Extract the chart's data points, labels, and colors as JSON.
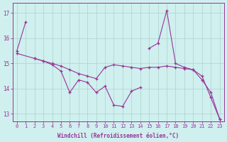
{
  "xlabel": "Windchill (Refroidissement éolien,°C)",
  "background_color": "#cff0ee",
  "grid_color": "#b0d8d0",
  "line_color": "#993399",
  "x_range": [
    -0.5,
    23.5
  ],
  "y_range": [
    12.7,
    17.4
  ],
  "yticks": [
    13,
    14,
    15,
    16,
    17
  ],
  "xticks": [
    0,
    1,
    2,
    3,
    4,
    5,
    6,
    7,
    8,
    9,
    10,
    11,
    12,
    13,
    14,
    15,
    16,
    17,
    18,
    19,
    20,
    21,
    22,
    23
  ],
  "series1_x": [
    0,
    1
  ],
  "series1_y": [
    15.5,
    16.65
  ],
  "series2_x": [
    2,
    3,
    4,
    5,
    6,
    7,
    8,
    9,
    10,
    11,
    12,
    13,
    14
  ],
  "series2_y": [
    15.2,
    15.1,
    14.95,
    14.7,
    13.85,
    14.35,
    14.25,
    13.85,
    14.1,
    13.35,
    13.3,
    13.9,
    14.05
  ],
  "series3_x": [
    15,
    16,
    17,
    18,
    19,
    20,
    21,
    22,
    23
  ],
  "series3_y": [
    15.6,
    15.8,
    17.1,
    15.0,
    14.85,
    14.75,
    14.5,
    13.65,
    12.8
  ],
  "series4_x": [
    0,
    2,
    3,
    4,
    5,
    6,
    7,
    8,
    9,
    10,
    11,
    12,
    13,
    14,
    15,
    16,
    17,
    18,
    19,
    20,
    21,
    22,
    23
  ],
  "series4_y": [
    15.4,
    15.2,
    15.1,
    15.0,
    14.9,
    14.75,
    14.6,
    14.5,
    14.4,
    14.85,
    14.95,
    14.9,
    14.85,
    14.8,
    14.85,
    14.85,
    14.9,
    14.85,
    14.8,
    14.75,
    14.35,
    13.85,
    12.8
  ]
}
